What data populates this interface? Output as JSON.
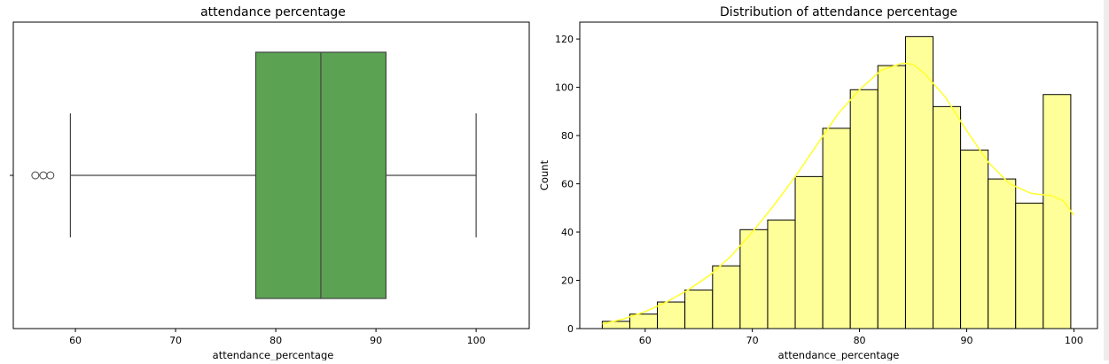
{
  "chart_data": [
    {
      "type": "box",
      "title": "attendance percentage",
      "xlabel": "attendance_percentage",
      "ylabel": "",
      "xlim": [
        53.8,
        105.3
      ],
      "xticks": [
        60,
        70,
        80,
        90,
        100
      ],
      "box": {
        "whisker_low": 59.5,
        "q1": 78,
        "median": 84.5,
        "q3": 91,
        "whisker_high": 100
      },
      "outliers": [
        56,
        56.8,
        57.5
      ],
      "color": "#5ba352",
      "grid": false
    },
    {
      "type": "histogram",
      "title": "Distribution of attendance percentage",
      "xlabel": "attendance_percentage",
      "ylabel": "Count",
      "xlim": [
        53.9,
        102.2
      ],
      "ylim": [
        0,
        127
      ],
      "xticks": [
        60,
        70,
        80,
        90,
        100
      ],
      "yticks": [
        0,
        20,
        40,
        60,
        80,
        100,
        120
      ],
      "bin_edges": [
        56,
        58.57,
        61.14,
        63.71,
        66.29,
        68.86,
        71.43,
        74,
        76.57,
        79.14,
        81.71,
        84.29,
        86.86,
        89.43,
        92,
        94.57,
        97.14,
        99.71
      ],
      "counts": [
        3,
        6,
        11,
        16,
        26,
        41,
        45,
        63,
        83,
        99,
        109,
        121,
        92,
        74,
        62,
        52,
        97
      ],
      "kde": {
        "x": [
          56,
          58,
          60,
          62,
          64,
          66,
          68,
          70,
          72,
          74,
          76,
          78,
          80,
          82,
          84,
          85,
          86,
          88,
          90,
          92,
          94,
          96,
          98,
          99,
          100
        ],
        "y": [
          2,
          4,
          7,
          11,
          16,
          22,
          30,
          40,
          51,
          63,
          76,
          89,
          99,
          107,
          110,
          109.5,
          106,
          96,
          82,
          69,
          60,
          56,
          55,
          53,
          47
        ]
      },
      "bar_color": "#ffff99",
      "line_color": "#ffff33",
      "grid": false
    }
  ]
}
